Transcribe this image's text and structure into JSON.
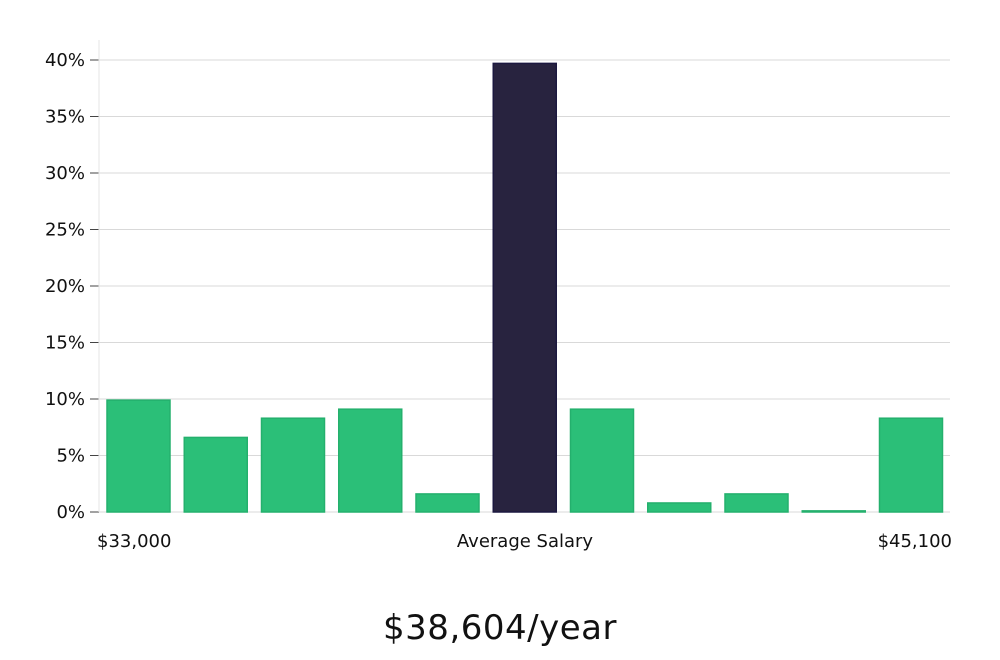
{
  "chart_data": {
    "type": "bar",
    "categories": [
      "1",
      "2",
      "3",
      "4",
      "5",
      "6",
      "7",
      "8",
      "9",
      "10",
      "11"
    ],
    "values": [
      9.9,
      6.6,
      8.3,
      9.1,
      1.6,
      39.7,
      9.1,
      0.8,
      1.6,
      0.1,
      8.3
    ],
    "highlight_index": 5,
    "ylim": [
      0,
      42
    ],
    "yticks": [
      0,
      5,
      10,
      15,
      20,
      25,
      30,
      35,
      40
    ],
    "ytick_labels": [
      "0%",
      "5%",
      "10%",
      "15%",
      "20%",
      "25%",
      "30%",
      "35%",
      "40%"
    ],
    "x_label_left": "$33,000",
    "x_label_center": "Average Salary",
    "x_label_right": "$45,100",
    "grid": true,
    "colors": {
      "bar": "#2bbf78",
      "highlight": "#28233f",
      "grid": "#d9d9d9"
    }
  },
  "average_salary": "$38,604/year"
}
